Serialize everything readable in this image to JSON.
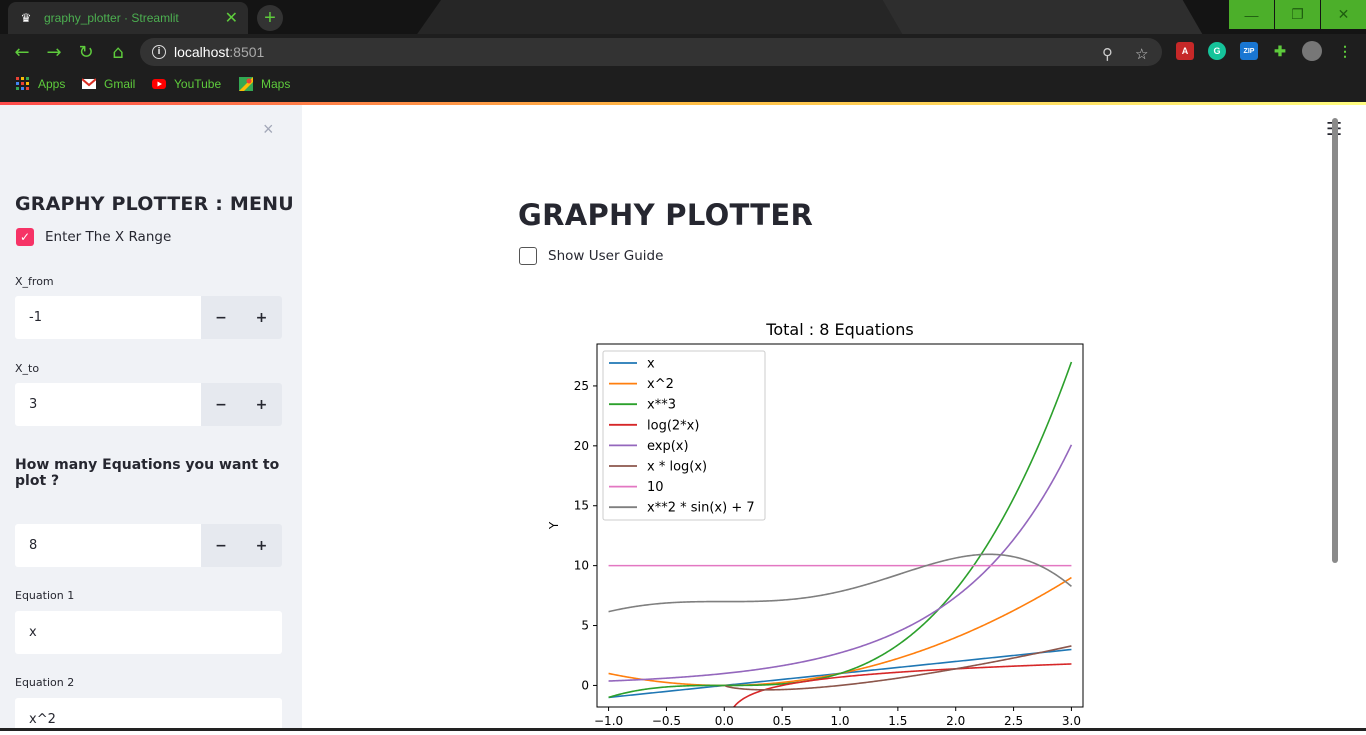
{
  "browser": {
    "tab_title": "graphy_plotter · Streamlit",
    "tab_close": "✕",
    "new_tab": "+",
    "url_host": "localhost",
    "url_port": ":8501",
    "bookmarks": [
      {
        "label": "Apps"
      },
      {
        "label": "Gmail"
      },
      {
        "label": "YouTube"
      },
      {
        "label": "Maps"
      }
    ]
  },
  "sidebar": {
    "close": "×",
    "heading": "GRAPHY PLOTTER : MENU",
    "range_checkbox_label": "Enter The X Range",
    "x_from_label": "X_from",
    "x_from_value": "-1",
    "x_to_label": "X_to",
    "x_to_value": "3",
    "equations_question": "How many Equations you want to plot ?",
    "equations_count": "8",
    "minus": "−",
    "plus": "+",
    "equation1_label": "Equation 1",
    "equation1_value": "x",
    "equation2_label": "Equation 2",
    "equation2_value": "x^2"
  },
  "main": {
    "menu": "☰",
    "title": "GRAPHY PLOTTER",
    "guide_checkbox_label": "Show User Guide"
  },
  "chart_data": {
    "type": "line",
    "title": "Total : 8 Equations",
    "xlabel": "",
    "ylabel": "Y",
    "xlim": [
      -1.1,
      3.1
    ],
    "ylim": [
      -1.8,
      28.5
    ],
    "xticks": [
      -1.0,
      -0.5,
      0.0,
      0.5,
      1.0,
      1.5,
      2.0,
      2.5,
      3.0
    ],
    "xtick_labels": [
      "−1.0",
      "−0.5",
      "0.0",
      "0.5",
      "1.0",
      "1.5",
      "2.0",
      "2.5",
      "3.0"
    ],
    "yticks": [
      0,
      5,
      10,
      15,
      20,
      25
    ],
    "grid": false,
    "legend_placement": "top-left",
    "series": [
      {
        "name": "x",
        "color": "#1f77b4",
        "expr": "x"
      },
      {
        "name": "x^2",
        "color": "#ff7f0e",
        "expr": "x^2"
      },
      {
        "name": "x**3",
        "color": "#2ca02c",
        "expr": "x**3"
      },
      {
        "name": "log(2*x)",
        "color": "#d62728",
        "expr": "log(2*x)"
      },
      {
        "name": "exp(x)",
        "color": "#9467bd",
        "expr": "exp(x)"
      },
      {
        "name": "x * log(x)",
        "color": "#8c564b",
        "expr": "x * log(x)"
      },
      {
        "name": "10",
        "color": "#e377c2",
        "expr": "10"
      },
      {
        "name": "x**2 * sin(x) + 7",
        "color": "#7f7f7f",
        "expr": "x**2 * sin(x) + 7"
      }
    ]
  }
}
